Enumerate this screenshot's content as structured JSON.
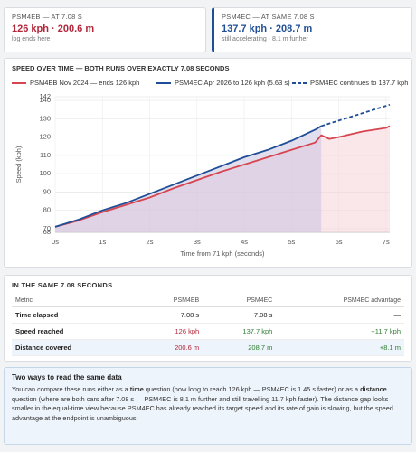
{
  "cards": [
    {
      "label": "PSM4EB — AT 7.08 S",
      "value": "126 kph · 200.6 m",
      "note": "log ends here"
    },
    {
      "label": "PSM4EC — AT SAME 7.08 S",
      "value": "137.7 kph · 208.7 m",
      "note": "still accelerating · 8.1 m further"
    }
  ],
  "chart_data": {
    "type": "line",
    "title": "SPEED OVER TIME — BOTH RUNS OVER EXACTLY 7.08 SECONDS",
    "x_label": "Time from 71 kph (seconds)",
    "y_label": "Speed (kph)",
    "xlim": [
      0,
      7.08
    ],
    "ylim": [
      68,
      142
    ],
    "xticks": [
      {
        "value": 0,
        "label": "0s"
      },
      {
        "value": 1,
        "label": "1s"
      },
      {
        "value": 2,
        "label": "2s"
      },
      {
        "value": 3,
        "label": "3s"
      },
      {
        "value": 4,
        "label": "4s"
      },
      {
        "value": 5,
        "label": "5s"
      },
      {
        "value": 6,
        "label": "6s"
      },
      {
        "value": 7,
        "label": "7s"
      }
    ],
    "yticks": [
      68,
      70,
      80,
      90,
      100,
      110,
      120,
      130,
      140,
      142
    ],
    "grid": true,
    "series": [
      {
        "name": "PSM4EB Nov 2024 — ends 126 kph",
        "color": "#d64550",
        "fill": "#f6d3d8",
        "x": [
          0,
          0.5,
          1,
          1.5,
          2,
          2.5,
          3,
          3.5,
          4,
          4.5,
          5,
          5.5,
          5.63,
          5.8,
          6,
          6.5,
          7,
          7.08
        ],
        "values": [
          71,
          74.5,
          79,
          83,
          87,
          92,
          96.5,
          101,
          105,
          109,
          113,
          117,
          121,
          119,
          120,
          123,
          125,
          126
        ]
      },
      {
        "name": "PSM4EC Apr 2026 to 126 kph (5.63 s)",
        "color": "#1f4e96",
        "fill": "#c9c3e0",
        "x": [
          0,
          0.5,
          1,
          1.5,
          2,
          2.5,
          3,
          3.5,
          4,
          4.5,
          5,
          5.5,
          5.63
        ],
        "values": [
          71,
          75,
          80,
          84,
          89,
          94,
          99,
          104,
          109,
          113,
          118,
          124,
          126
        ]
      },
      {
        "name": "PSM4EC continues to 137.7 kph",
        "color": "#1f4e96",
        "dashed": true,
        "x": [
          5.63,
          6,
          6.5,
          7,
          7.08
        ],
        "values": [
          126,
          129,
          133,
          137,
          137.7
        ]
      }
    ]
  },
  "table": {
    "title": "IN THE SAME 7.08 SECONDS",
    "header": [
      "Metric",
      "PSM4EB",
      "PSM4EC",
      "PSM4EC advantage"
    ],
    "rows": [
      [
        "Time elapsed",
        "7.08 s",
        "7.08 s",
        "—"
      ],
      [
        "Speed reached",
        "126 kph",
        "137.7 kph",
        "+11.7 kph"
      ],
      [
        "Distance covered",
        "200.6 m",
        "208.7 m",
        "+8.1 m"
      ]
    ]
  },
  "note": {
    "title": "Two ways to read the same data",
    "segments": [
      {
        "text": "You can compare these runs either as a "
      },
      {
        "text": "time",
        "bold": true
      },
      {
        "text": " question (how long to reach 126 kph — PSM4EC is 1.45 s faster) or as a "
      },
      {
        "text": "distance",
        "bold": true
      },
      {
        "text": " question (where are both cars after 7.08 s — PSM4EC is 8.1 m further and still travelling 11.7 kph faster). The distance gap looks smaller in the equal-time view because PSM4EC has already reached its target speed and its rate of gain is slowing, but the speed advantage at the endpoint is unambiguous."
      }
    ]
  }
}
